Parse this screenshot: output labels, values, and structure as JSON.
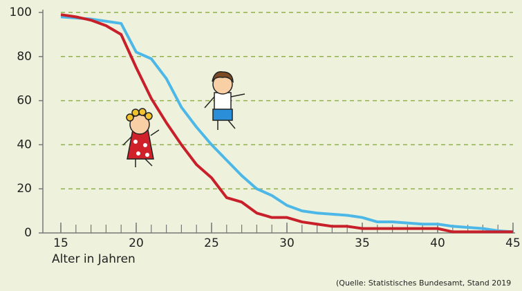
{
  "chart_data": {
    "type": "line",
    "x_label": "Alter in Jahren",
    "source": "(Quelle: Statistisches Bundesamt, Stand 2019",
    "x": [
      15,
      16,
      17,
      18,
      19,
      20,
      21,
      22,
      23,
      24,
      25,
      26,
      27,
      28,
      29,
      30,
      31,
      32,
      33,
      34,
      35,
      36,
      37,
      38,
      39,
      40,
      41,
      42,
      43,
      44,
      45
    ],
    "series": [
      {
        "color": "#4db8e8",
        "values": [
          98,
          97.5,
          97,
          96,
          95,
          82,
          79,
          70,
          57,
          48,
          40,
          33,
          26,
          20,
          17,
          12.5,
          10,
          9,
          8.5,
          8,
          7,
          5,
          5,
          4.5,
          4,
          4,
          3,
          2.5,
          2,
          1,
          0.5
        ]
      },
      {
        "color": "#c8202a",
        "values": [
          99,
          98,
          96.5,
          94,
          90,
          75,
          61,
          50,
          40,
          31,
          25,
          16,
          14,
          9,
          7,
          7,
          5,
          4,
          3,
          3,
          2,
          2,
          2,
          2,
          2,
          2,
          0.5,
          0.5,
          0.5,
          0.5,
          0.5
        ]
      }
    ],
    "xlim": [
      15,
      45
    ],
    "xticks": [
      15,
      20,
      25,
      30,
      35,
      40,
      45
    ],
    "ylim": [
      0,
      100
    ],
    "yticks": [
      0,
      20,
      40,
      60,
      80,
      100
    ],
    "grid": true
  }
}
